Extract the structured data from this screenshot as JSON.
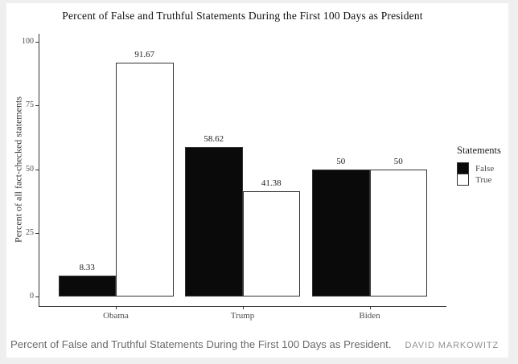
{
  "page": {
    "caption": "Percent of False and Truthful Statements During the First 100 Days as President.",
    "byline": "DAVID MARKOWITZ",
    "background_color": "#ffffff",
    "frame_color": "#efefef"
  },
  "chart_data": {
    "type": "bar",
    "title": "Percent of False and Truthful Statements During the First 100 Days as President",
    "xlabel": "",
    "ylabel": "Percent of all fact-checked statements",
    "categories": [
      "Obama",
      "Trump",
      "Biden"
    ],
    "series": [
      {
        "name": "False",
        "color": "#0a0a0a",
        "values": [
          8.33,
          58.62,
          50
        ]
      },
      {
        "name": "True",
        "color": "#ffffff",
        "values": [
          91.67,
          41.38,
          50
        ]
      }
    ],
    "ylim": [
      0,
      100
    ],
    "y_ticks": [
      0,
      25,
      50,
      75,
      100
    ],
    "grid": false,
    "bar_border_color": "#333333",
    "axis_color": "#333333",
    "legend": {
      "title": "Statements",
      "position": "right",
      "entries": [
        "False",
        "True"
      ]
    }
  }
}
